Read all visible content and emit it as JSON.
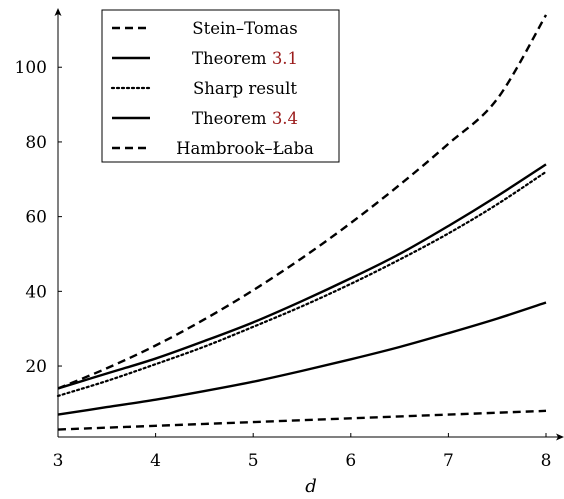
{
  "chart_data": {
    "type": "line",
    "xlabel": "d",
    "ylabel": "",
    "xlim": [
      3,
      8.2
    ],
    "ylim": [
      1,
      116
    ],
    "xticks": [
      3,
      4,
      5,
      6,
      7,
      8
    ],
    "yticks": [
      20,
      40,
      60,
      80,
      100
    ],
    "grid": false,
    "legend_position": "top-left",
    "series": [
      {
        "name": "Stein–Tomas",
        "style": "dashed",
        "x": [
          3,
          3.5,
          4,
          4.5,
          5,
          5.5,
          6,
          6.5,
          7,
          7.5,
          8
        ],
        "y": [
          14,
          19.4,
          25.5,
          32.5,
          40.3,
          48.9,
          58.3,
          68.5,
          79.5,
          91.5,
          114
        ]
      },
      {
        "name": "Theorem 3.1",
        "name_parts": [
          "Theorem ",
          "3.1"
        ],
        "style": "solid",
        "x": [
          3,
          3.5,
          4,
          4.5,
          5,
          5.5,
          6,
          6.5,
          7,
          7.5,
          8
        ],
        "y": [
          14,
          18,
          22,
          26.7,
          31.7,
          37.4,
          43.5,
          50,
          57.5,
          65.5,
          74
        ]
      },
      {
        "name": "Sharp result",
        "style": "dotted",
        "x": [
          3,
          3.5,
          4,
          4.5,
          5,
          5.5,
          6,
          6.5,
          7,
          7.5,
          8
        ],
        "y": [
          12,
          16,
          20.5,
          25.2,
          30.5,
          36,
          42,
          48.5,
          55.5,
          63.3,
          72
        ]
      },
      {
        "name": "Theorem 3.4",
        "name_parts": [
          "Theorem ",
          "3.4"
        ],
        "style": "solid",
        "x": [
          3,
          3.5,
          4,
          4.5,
          5,
          5.5,
          6,
          6.5,
          7,
          7.5,
          8
        ],
        "y": [
          7,
          9,
          11,
          13.3,
          15.8,
          18.7,
          21.8,
          25.1,
          28.8,
          32.7,
          37
        ]
      },
      {
        "name": "Hambrook–Łaba",
        "style": "dashed",
        "x": [
          3,
          4,
          5,
          6,
          7,
          8
        ],
        "y": [
          3,
          4,
          5,
          6,
          7,
          8
        ]
      }
    ]
  }
}
